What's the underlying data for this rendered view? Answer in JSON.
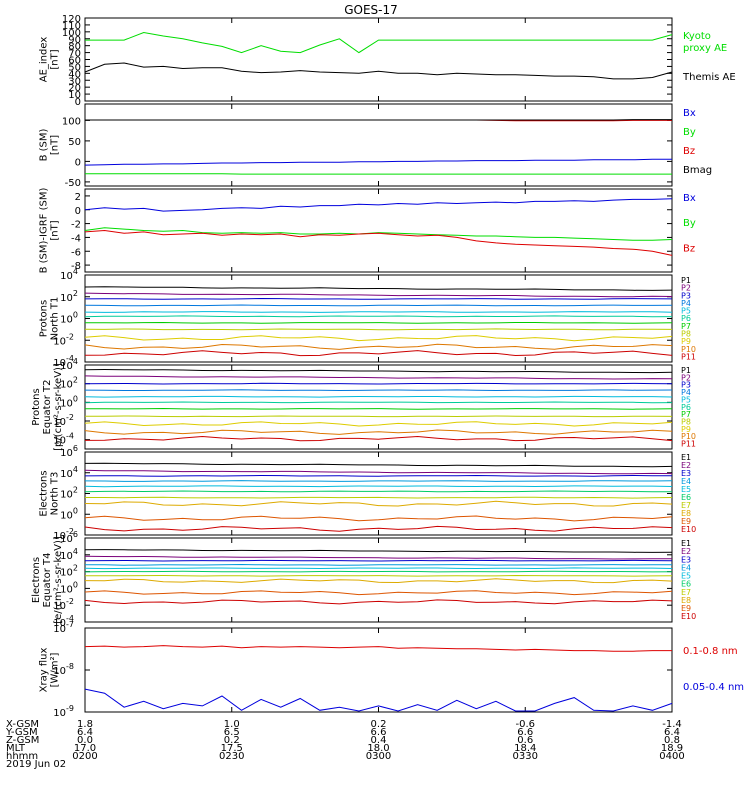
{
  "title": "GOES-17",
  "colors": {
    "black": "#000000",
    "red": "#dd0000",
    "green": "#00dd00",
    "blue": "#0000dd",
    "proton_palette": [
      "#000000",
      "#7a007a",
      "#0000cc",
      "#0077dd",
      "#00bbdd",
      "#00cc99",
      "#00cc00",
      "#bbcc00",
      "#ddcc00",
      "#dd7700",
      "#cc0000"
    ],
    "electron_palette": [
      "#000000",
      "#7a007a",
      "#0000cc",
      "#0099dd",
      "#00bbdd",
      "#00cc66",
      "#bbcc00",
      "#ddaa00",
      "#dd5500",
      "#cc0000"
    ]
  },
  "x_axis": {
    "rows": [
      {
        "label": "X-GSM",
        "values": [
          "1.8",
          "1.0",
          "0.2",
          "-0.6",
          "-1.4"
        ]
      },
      {
        "label": "Y-GSM",
        "values": [
          "6.4",
          "6.5",
          "6.6",
          "6.6",
          "6.4"
        ]
      },
      {
        "label": "Z-GSM",
        "values": [
          "0.0",
          "0.2",
          "0.4",
          "0.6",
          "0.8"
        ]
      },
      {
        "label": "MLT",
        "values": [
          "17.0",
          "17.5",
          "18.0",
          "18.4",
          "18.9"
        ]
      },
      {
        "label": "hhmm",
        "values": [
          "0200",
          "0230",
          "0300",
          "0330",
          "0400"
        ]
      }
    ],
    "date": "2019 Jun 02",
    "time_range": [
      "02:00",
      "04:00"
    ]
  },
  "chart_data": [
    {
      "type": "line",
      "id": "ae",
      "ylabel": [
        "AE_index",
        "[nT]"
      ],
      "ylim": [
        0,
        120
      ],
      "yticks": [
        "0",
        "10",
        "20",
        "30",
        "40",
        "50",
        "60",
        "70",
        "80",
        "90",
        "100",
        "110",
        "120"
      ],
      "x": [
        "02:00",
        "02:04",
        "02:08",
        "02:12",
        "02:16",
        "02:20",
        "02:24",
        "02:28",
        "02:32",
        "02:36",
        "02:40",
        "02:44",
        "02:48",
        "02:52",
        "02:56",
        "03:00",
        "03:04",
        "03:08",
        "03:12",
        "03:16",
        "03:20",
        "03:24",
        "03:28",
        "03:32",
        "03:36",
        "03:40",
        "03:44",
        "03:48",
        "03:52",
        "03:56",
        "04:00"
      ],
      "series": [
        {
          "name": "Kyoto proxy AE",
          "color": "#00dd00",
          "label_lines": [
            "Kyoto",
            "proxy AE"
          ],
          "values": [
            88,
            88,
            88,
            99,
            94,
            90,
            84,
            79,
            70,
            80,
            72,
            70,
            81,
            90,
            70,
            88,
            88,
            88,
            88,
            88,
            88,
            88,
            88,
            88,
            88,
            88,
            88,
            88,
            88,
            88,
            96
          ]
        },
        {
          "name": "Themis AE",
          "color": "#000000",
          "label_lines": [
            "Themis AE"
          ],
          "values": [
            42,
            53,
            55,
            49,
            50,
            47,
            48,
            48,
            43,
            41,
            42,
            44,
            42,
            41,
            40,
            43,
            40,
            40,
            38,
            40,
            39,
            38,
            38,
            37,
            36,
            36,
            35,
            32,
            32,
            34,
            42
          ]
        }
      ]
    },
    {
      "type": "line",
      "id": "bsm",
      "ylabel": [
        "B (SM)",
        "[nT]"
      ],
      "ylim": [
        -60,
        140
      ],
      "yticks": [
        "-50",
        "0",
        "50",
        "100"
      ],
      "ytick_values": [
        -50,
        0,
        50,
        100
      ],
      "series": [
        {
          "name": "Bx",
          "color": "#0000dd",
          "values": [
            -9,
            -8,
            -7,
            -7,
            -6,
            -6,
            -5,
            -4,
            -4,
            -3,
            -3,
            -2,
            -2,
            -2,
            -1,
            -1,
            0,
            0,
            1,
            1,
            2,
            2,
            2,
            3,
            3,
            3,
            4,
            4,
            4,
            5,
            5
          ]
        },
        {
          "name": "By",
          "color": "#00dd00",
          "values": [
            -30,
            -30,
            -30,
            -30,
            -30,
            -30,
            -30,
            -30,
            -31,
            -31,
            -31,
            -31,
            -31,
            -31,
            -31,
            -31,
            -31,
            -31,
            -31,
            -31,
            -31,
            -31,
            -31,
            -31,
            -31,
            -31,
            -31,
            -31,
            -31,
            -31,
            -31
          ]
        },
        {
          "name": "Bz",
          "color": "#dd0000",
          "values": [
            101,
            101,
            101,
            101,
            101,
            101,
            101,
            101,
            101,
            101,
            101,
            101,
            101,
            101,
            101,
            101,
            101,
            101,
            101,
            101,
            101,
            100,
            99,
            99,
            99,
            99,
            99,
            99,
            100,
            100,
            100
          ]
        },
        {
          "name": "Bmag",
          "color": "#000000",
          "values": [
            101,
            101,
            101,
            101,
            101,
            101,
            101,
            101,
            101,
            101,
            101,
            101,
            101,
            101,
            101,
            101,
            101,
            101,
            101,
            101,
            101,
            101,
            101,
            101,
            101,
            101,
            101,
            101,
            102,
            102,
            102
          ]
        }
      ]
    },
    {
      "type": "line",
      "id": "bdiff",
      "ylabel": [
        "B (SM)-IGRF (SM)",
        "[nT]"
      ],
      "ylim": [
        -9,
        3
      ],
      "yticks": [
        "-8",
        "-6",
        "-4",
        "-2",
        "0",
        "2"
      ],
      "ytick_values": [
        -8,
        -6,
        -4,
        -2,
        0,
        2
      ],
      "series": [
        {
          "name": "Bx",
          "color": "#0000dd",
          "values": [
            0,
            0.3,
            0.1,
            0.2,
            -0.2,
            -0.1,
            0.0,
            0.2,
            0.3,
            0.2,
            0.5,
            0.4,
            0.6,
            0.6,
            0.8,
            0.7,
            0.9,
            0.8,
            1.0,
            0.9,
            1.0,
            1.1,
            1.0,
            1.2,
            1.2,
            1.3,
            1.2,
            1.4,
            1.5,
            1.5,
            1.6
          ]
        },
        {
          "name": "By",
          "color": "#00dd00",
          "values": [
            -3.0,
            -2.6,
            -2.8,
            -3.0,
            -3.1,
            -3.0,
            -3.3,
            -3.4,
            -3.3,
            -3.4,
            -3.3,
            -3.5,
            -3.5,
            -3.4,
            -3.5,
            -3.3,
            -3.4,
            -3.5,
            -3.6,
            -3.7,
            -3.8,
            -3.8,
            -3.9,
            -4.0,
            -4.0,
            -4.1,
            -4.2,
            -4.3,
            -4.4,
            -4.4,
            -4.3
          ]
        },
        {
          "name": "Bz",
          "color": "#dd0000",
          "values": [
            -3.2,
            -3.0,
            -3.4,
            -3.2,
            -3.6,
            -3.5,
            -3.4,
            -3.7,
            -3.5,
            -3.6,
            -3.5,
            -3.9,
            -3.6,
            -3.7,
            -3.5,
            -3.4,
            -3.6,
            -3.8,
            -3.7,
            -4.0,
            -4.5,
            -4.8,
            -5.0,
            -5.1,
            -5.2,
            -5.3,
            -5.4,
            -5.6,
            -5.7,
            -6.0,
            -6.6
          ]
        }
      ]
    },
    {
      "type": "line",
      "id": "p_t1",
      "log": true,
      "ylabel": [
        "Protons",
        "North T1"
      ],
      "ylim_exp": [
        -4,
        4
      ],
      "ytick_exps": [
        -4,
        -2,
        0,
        2,
        4
      ],
      "channels": [
        "P1",
        "P2",
        "P3",
        "P4",
        "P5",
        "P6",
        "P7",
        "P8",
        "P9",
        "P10",
        "P11"
      ],
      "levels_exp": [
        2.9,
        2.3,
        1.8,
        1.2,
        0.6,
        0.2,
        -0.4,
        -1.0,
        -1.8,
        -2.6,
        -3.2
      ]
    },
    {
      "type": "line",
      "id": "p_t2",
      "log": true,
      "ylabel": [
        "Protons",
        "Equator T2",
        "[p/(cm²-s-sr-keV)]"
      ],
      "ylim_exp": [
        -5,
        4
      ],
      "ytick_exps": [
        -4,
        -2,
        0,
        2,
        4
      ],
      "channels": [
        "P1",
        "P2",
        "P3",
        "P4",
        "P5",
        "P6",
        "P7",
        "P8",
        "P9",
        "P10",
        "P11"
      ],
      "levels_exp": [
        3.5,
        2.8,
        2.0,
        1.3,
        0.6,
        0.0,
        -0.7,
        -1.5,
        -2.3,
        -3.2,
        -3.9
      ]
    },
    {
      "type": "line",
      "id": "e_t3",
      "log": true,
      "ylabel": [
        "Electrons",
        "North T3"
      ],
      "ylim_exp": [
        -2,
        6
      ],
      "ytick_exps": [
        -2,
        0,
        2,
        4,
        6
      ],
      "channels": [
        "E1",
        "E2",
        "E3",
        "E4",
        "E5",
        "E6",
        "E7",
        "E8",
        "E9",
        "E10"
      ],
      "levels_exp": [
        4.9,
        4.2,
        3.7,
        3.2,
        2.7,
        2.2,
        1.6,
        1.0,
        -0.4,
        -1.4
      ]
    },
    {
      "type": "line",
      "id": "e_t4",
      "log": true,
      "ylabel": [
        "Electrons",
        "Equator T4",
        "[e/(cm²-s-sr-keV)]"
      ],
      "ylim_exp": [
        -4,
        6
      ],
      "ytick_exps": [
        -4,
        -2,
        0,
        2,
        4,
        6
      ],
      "channels": [
        "E1",
        "E2",
        "E3",
        "E4",
        "E5",
        "E6",
        "E7",
        "E8",
        "E9",
        "E10"
      ],
      "levels_exp": [
        4.6,
        3.8,
        3.3,
        2.8,
        2.4,
        2.0,
        1.5,
        0.9,
        -0.5,
        -1.6
      ]
    },
    {
      "type": "line",
      "id": "xray",
      "log": true,
      "ylabel": [
        "Xray flux",
        "[W/m²]"
      ],
      "ylim_exp": [
        -9,
        -7
      ],
      "ytick_exps": [
        -9,
        -8,
        -7
      ],
      "series": [
        {
          "name": "0.1-0.8 nm",
          "color": "#dd0000",
          "values": [
            3.6e-08,
            3.7e-08,
            3.5e-08,
            3.6e-08,
            3.8e-08,
            3.6e-08,
            3.5e-08,
            3.7e-08,
            3.4e-08,
            3.6e-08,
            3.5e-08,
            3.6e-08,
            3.5e-08,
            3.4e-08,
            3.5e-08,
            3.6e-08,
            3.3e-08,
            3.4e-08,
            3.3e-08,
            3.2e-08,
            3.2e-08,
            3.1e-08,
            3e-08,
            3.1e-08,
            3e-08,
            2.9e-08,
            2.9e-08,
            2.8e-08,
            2.8e-08,
            2.9e-08,
            2.9e-08
          ]
        },
        {
          "name": "0.05-0.4 nm",
          "color": "#0000dd",
          "values": [
            3.5e-09,
            2.8e-09,
            1.3e-09,
            1.8e-09,
            1.2e-09,
            1.6e-09,
            1.4e-09,
            2.4e-09,
            1.1e-09,
            2e-09,
            1.3e-09,
            2.1e-09,
            1.1e-09,
            1.3e-09,
            1e-09,
            1.4e-09,
            1e-09,
            1.5e-09,
            1.1e-09,
            1.9e-09,
            1.2e-09,
            1.8e-09,
            1e-09,
            1e-09,
            1.6e-09,
            2.2e-09,
            1.1e-09,
            1e-09,
            1.4e-09,
            1.1e-09,
            1.6e-09
          ]
        }
      ]
    }
  ]
}
